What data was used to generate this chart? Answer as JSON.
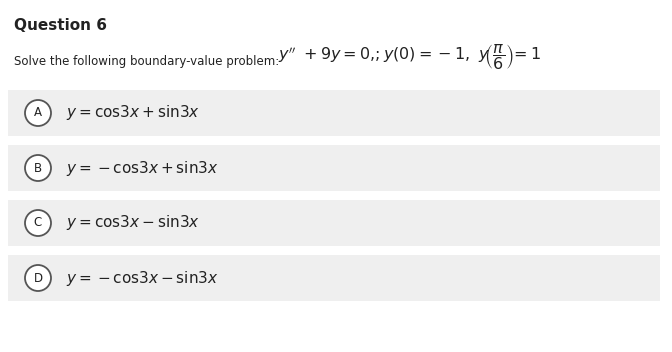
{
  "title": "Question 6",
  "problem_prefix": "Solve the following boundary-value problem: ",
  "bg_color": "#efefef",
  "white": "#ffffff",
  "text_color": "#222222",
  "circle_edge": "#555555",
  "title_fontsize": 11,
  "body_fontsize": 8.5,
  "option_fontsize": 11,
  "math_fontsize": 10,
  "options": [
    "A",
    "B",
    "C",
    "D"
  ],
  "option_math": [
    "$y=\\mathrm{cos}3x+\\mathrm{sin}3x$",
    "$y=-\\mathrm{cos}3x+\\mathrm{sin}3x$",
    "$y=\\mathrm{cos}3x-\\mathrm{sin}3x$",
    "$y=-\\mathrm{cos}3x-\\mathrm{sin}3x$"
  ]
}
